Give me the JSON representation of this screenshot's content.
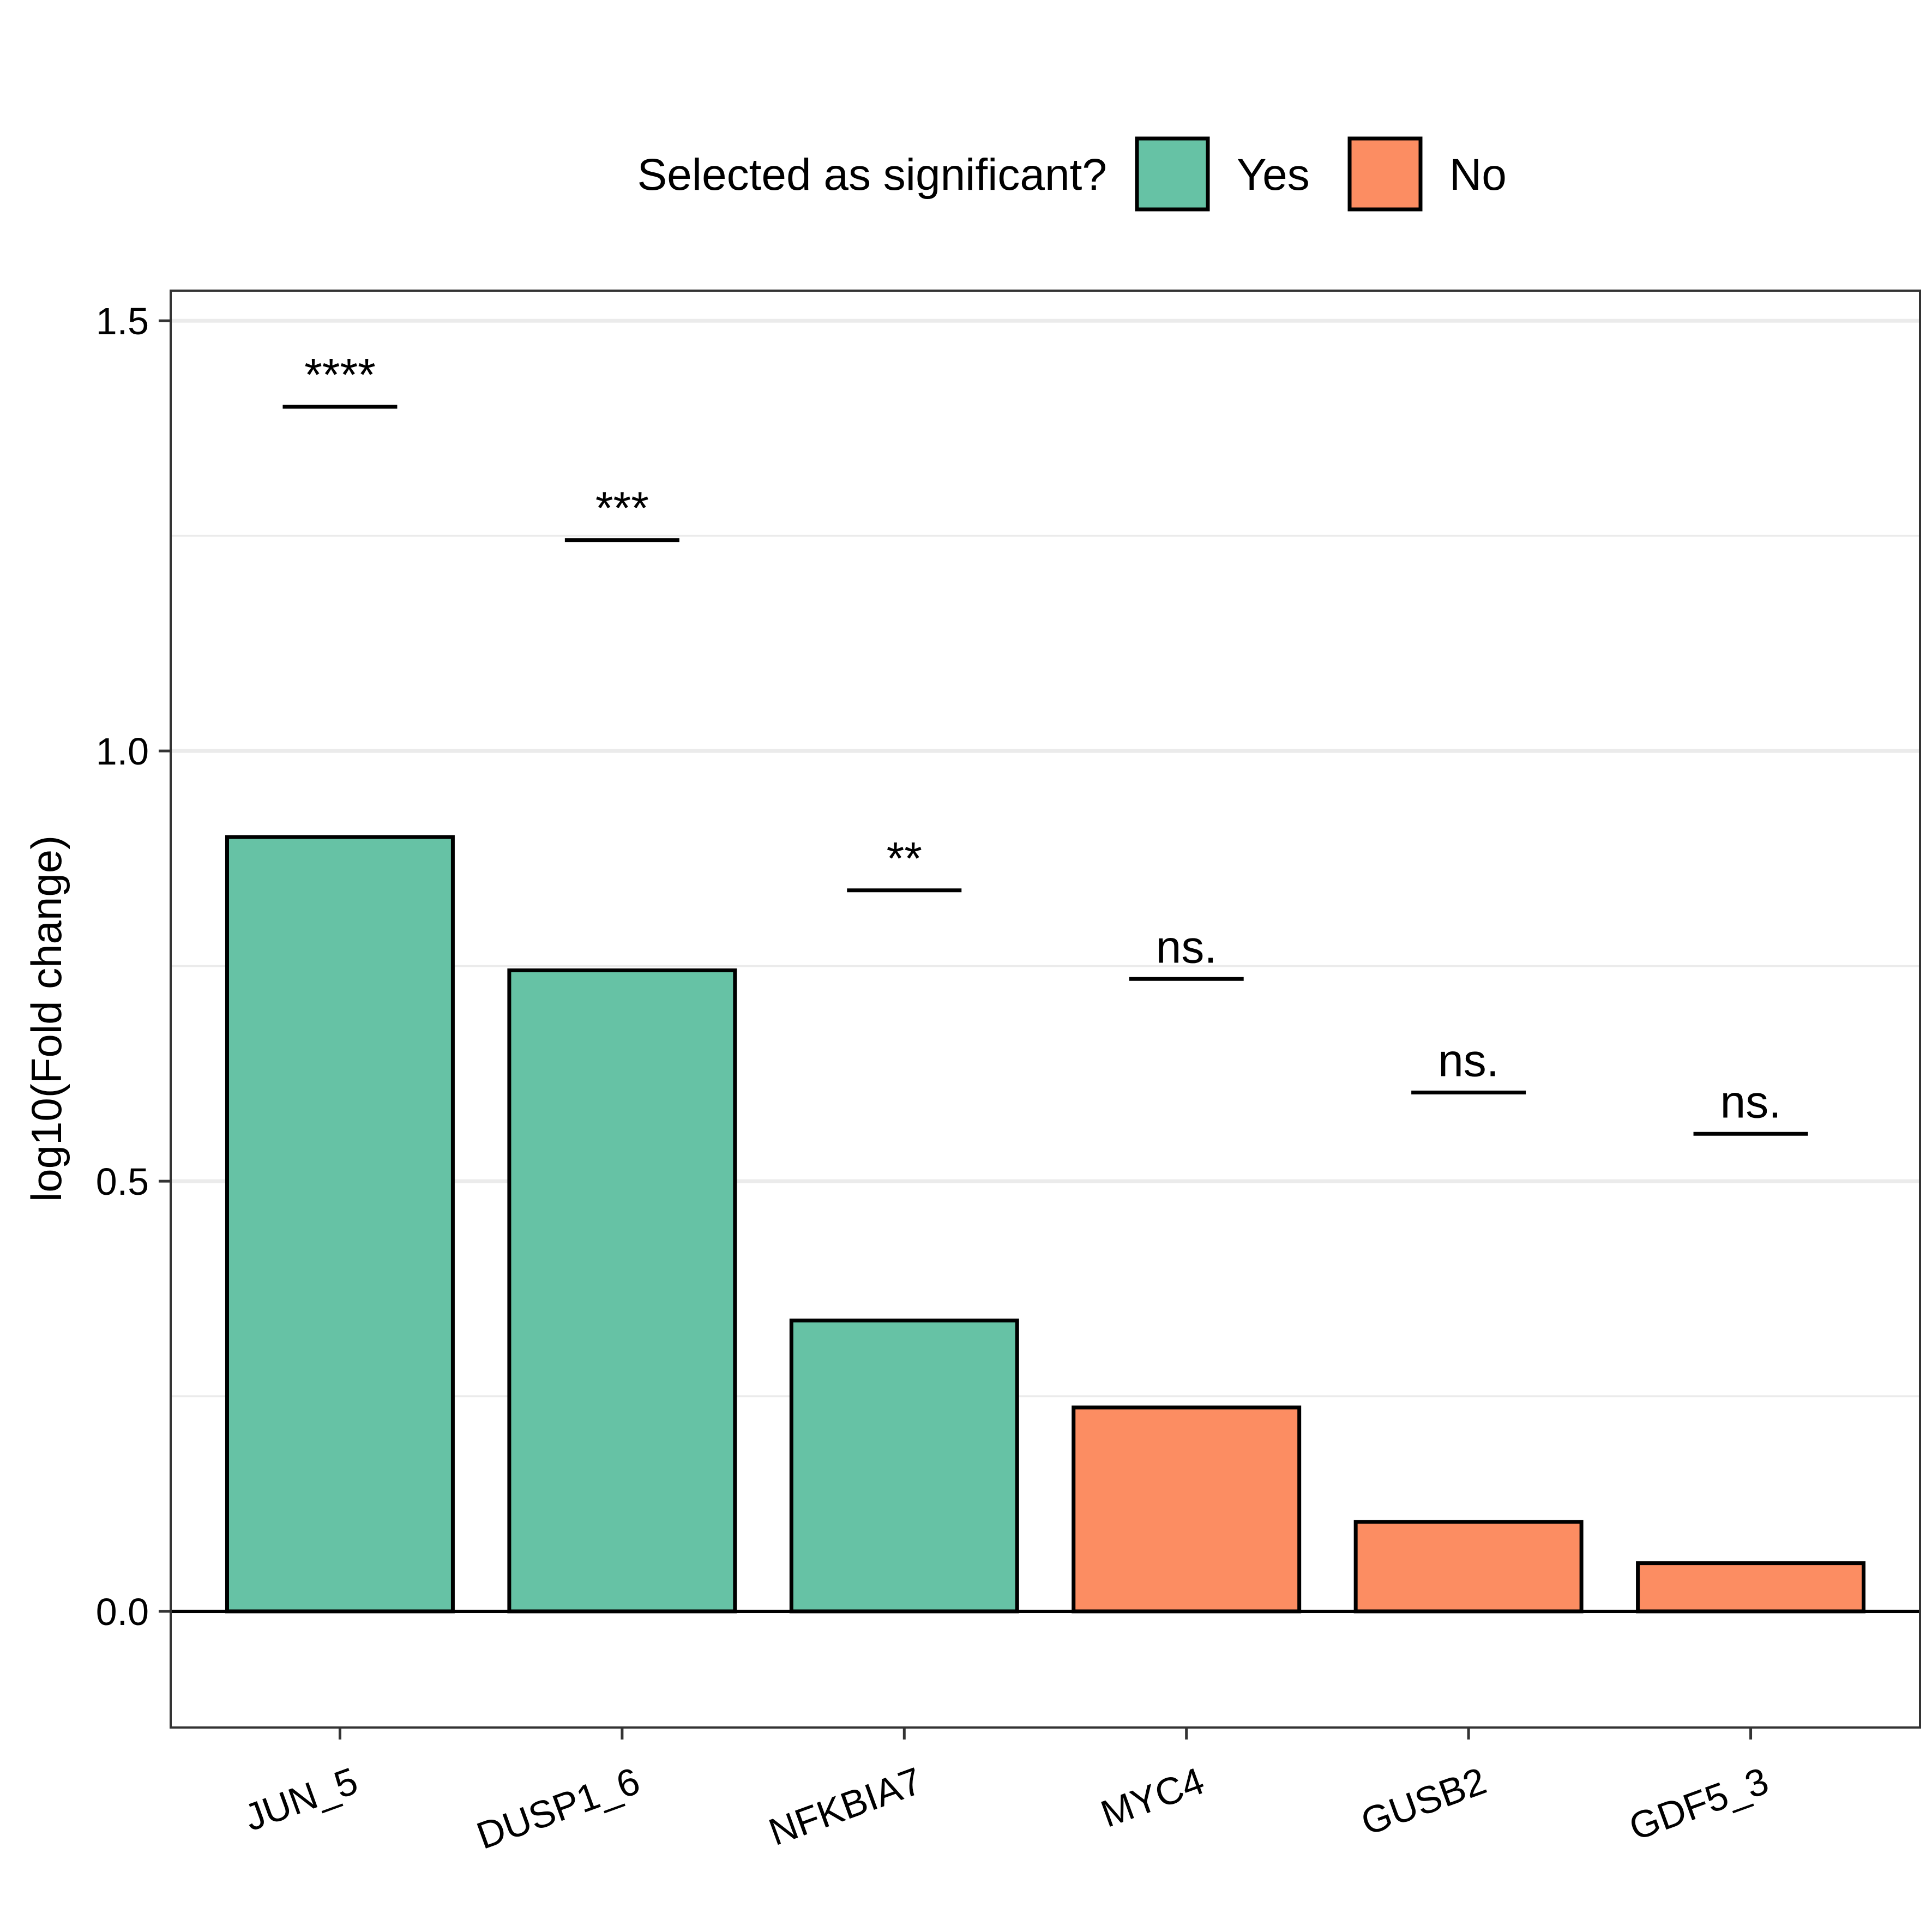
{
  "chart_data": {
    "type": "bar",
    "title": "",
    "xlabel": "",
    "ylabel": "log10(Fold change)",
    "ylim": [
      -0.135,
      1.535
    ],
    "yticks": [
      0.0,
      0.5,
      1.0,
      1.5
    ],
    "ytick_labels": [
      "0.0",
      "0.5",
      "1.0",
      "1.5"
    ],
    "minor_gridlines": [
      0.25,
      0.75,
      1.25
    ],
    "grid": true,
    "zero_line": true,
    "categories": [
      "JUN_5",
      "DUSP1_6",
      "NFKBIA7",
      "MYC4",
      "GUSB2",
      "GDF5_3"
    ],
    "values": [
      0.9,
      0.745,
      0.338,
      0.237,
      0.104,
      0.056
    ],
    "groups": [
      "Yes",
      "Yes",
      "Yes",
      "No",
      "No",
      "No"
    ],
    "significance": [
      {
        "category": "JUN_5",
        "label": "****",
        "y": 1.4
      },
      {
        "category": "DUSP1_6",
        "label": "***",
        "y": 1.245
      },
      {
        "category": "NFKBIA7",
        "label": "**",
        "y": 0.838
      },
      {
        "category": "MYC4",
        "label": "ns.",
        "y": 0.735
      },
      {
        "category": "GUSB2",
        "label": "ns.",
        "y": 0.603
      },
      {
        "category": "GDF5_3",
        "label": "ns.",
        "y": 0.555
      }
    ],
    "legend": {
      "title": "Selected as significant?",
      "position": "top",
      "entries": [
        {
          "label": "Yes",
          "color": "#66c2a5"
        },
        {
          "label": "No",
          "color": "#fc8d62"
        }
      ]
    },
    "x_tick_rotation": 20
  }
}
